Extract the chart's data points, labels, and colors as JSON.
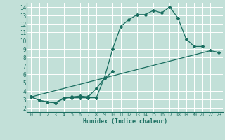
{
  "xlabel": "Humidex (Indice chaleur)",
  "bg_color": "#c2e0d8",
  "grid_color": "#ffffff",
  "line_color": "#1a6e60",
  "xlim": [
    -0.5,
    23.5
  ],
  "ylim": [
    1.5,
    14.5
  ],
  "xticks": [
    0,
    1,
    2,
    3,
    4,
    5,
    6,
    7,
    8,
    9,
    10,
    11,
    12,
    13,
    14,
    15,
    16,
    17,
    18,
    19,
    20,
    21,
    22,
    23
  ],
  "yticks": [
    2,
    3,
    4,
    5,
    6,
    7,
    8,
    9,
    10,
    11,
    12,
    13,
    14
  ],
  "line1_x": [
    0,
    1,
    2,
    3,
    4,
    5,
    6,
    7,
    8,
    9,
    10,
    11,
    12,
    13,
    14,
    15,
    16,
    17,
    18,
    19,
    20,
    21
  ],
  "line1_y": [
    3.3,
    2.9,
    2.7,
    2.6,
    3.2,
    3.2,
    3.2,
    3.2,
    3.2,
    5.6,
    9.0,
    11.7,
    12.5,
    13.1,
    13.1,
    13.6,
    13.3,
    14.0,
    12.7,
    10.2,
    9.3,
    9.3
  ],
  "line2_x": [
    0,
    1,
    2,
    3,
    4,
    5,
    6,
    7,
    8,
    9,
    10
  ],
  "line2_y": [
    3.3,
    2.9,
    2.7,
    2.6,
    3.1,
    3.3,
    3.4,
    3.3,
    4.3,
    5.5,
    6.3
  ],
  "line3_x": [
    0,
    22,
    23
  ],
  "line3_y": [
    3.3,
    8.8,
    8.6
  ]
}
